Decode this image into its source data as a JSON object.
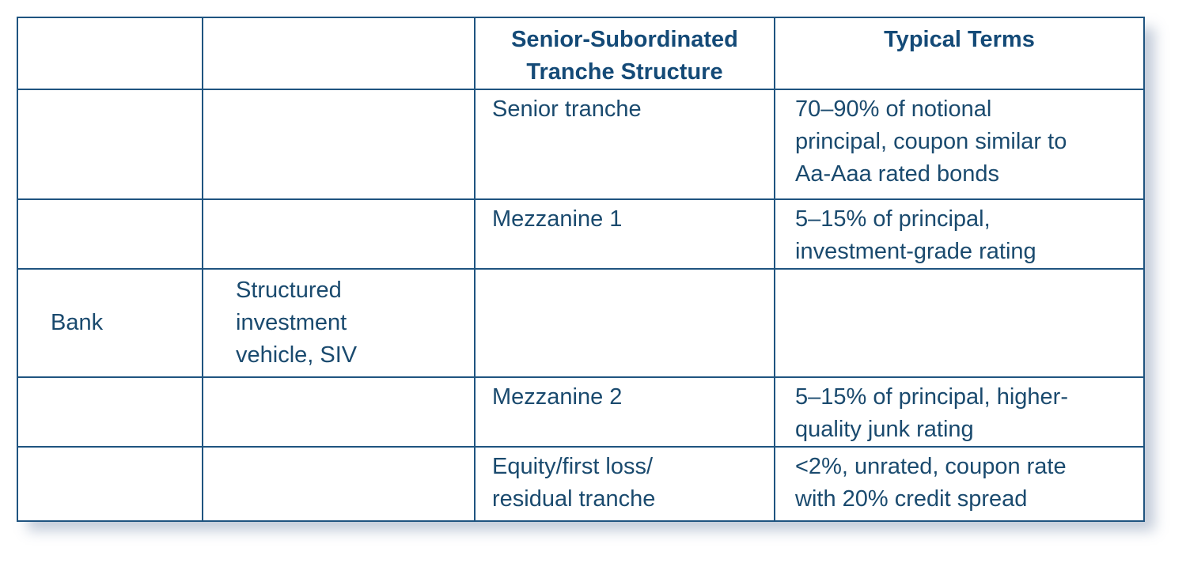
{
  "table": {
    "headers": [
      "",
      "",
      "Senior-Subordinated\nTranche Structure",
      "Typical Terms"
    ],
    "rows": [
      {
        "entity": "",
        "vehicle": "",
        "tranche": "Senior tranche",
        "terms": "70–90% of notional\nprincipal, coupon similar to\nAa-Aaa rated bonds"
      },
      {
        "entity": "",
        "vehicle": "",
        "tranche": "Mezzanine 1",
        "terms": "5–15% of principal,\ninvestment-grade rating"
      },
      {
        "entity": "Bank",
        "vehicle": "Structured\ninvestment\nvehicle, SIV",
        "tranche": "",
        "terms": ""
      },
      {
        "entity": "",
        "vehicle": "",
        "tranche": "Mezzanine 2",
        "terms": "5–15% of principal, higher-\nquality junk rating"
      },
      {
        "entity": "",
        "vehicle": "",
        "tranche": "Equity/first loss/\nresidual tranche",
        "terms": "<2%, unrated, coupon rate\nwith 20% credit spread"
      }
    ]
  },
  "colors": {
    "border": "#1f5480",
    "text": "#1a4a6e",
    "header_text": "#144a77"
  }
}
